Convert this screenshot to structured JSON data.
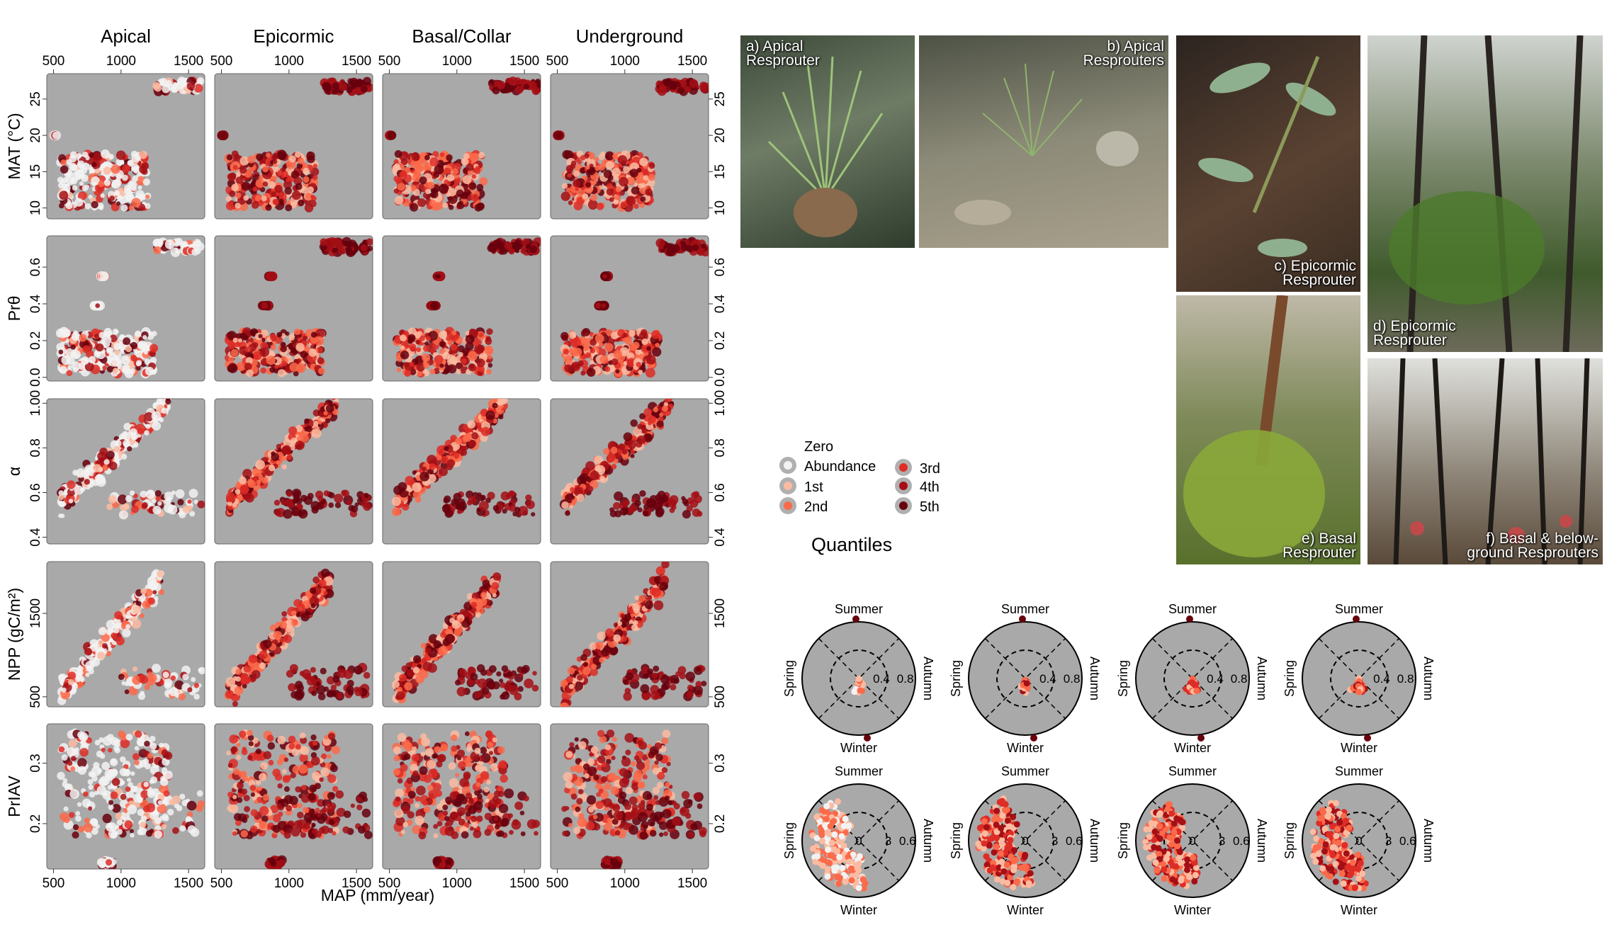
{
  "figure": {
    "col_titles": [
      "Apical",
      "Epicormic",
      "Basal/Collar",
      "Underground"
    ],
    "x_axis": {
      "label": "MAP (mm/year)",
      "ticks": [
        500,
        1000,
        1500
      ],
      "range": [
        450,
        1620
      ]
    },
    "rows": [
      {
        "ylabel": "MAT (°C)",
        "ticks": [
          10,
          15,
          20,
          25
        ],
        "range": [
          8.5,
          28.5
        ]
      },
      {
        "ylabel": "Prθ",
        "ticks": [
          "0.0",
          "0.2",
          "0.4",
          "0.6"
        ],
        "tick_values": [
          0,
          0.2,
          0.4,
          0.6
        ],
        "range": [
          -0.02,
          0.77
        ]
      },
      {
        "ylabel": "α",
        "ticks": [
          "0.4",
          "0.6",
          "0.8",
          "1.00"
        ],
        "tick_values": [
          0.4,
          0.6,
          0.8,
          1.0
        ],
        "range": [
          0.37,
          1.02
        ]
      },
      {
        "ylabel": "NPP (gC/m²)",
        "ticks": [
          500,
          1500
        ],
        "range": [
          380,
          2120
        ]
      },
      {
        "ylabel": "PrIAV",
        "ticks": [
          0.2,
          0.3
        ],
        "range": [
          0.125,
          0.365
        ]
      }
    ],
    "legend": {
      "title": "Quantiles",
      "items": [
        "Zero Abundance",
        "1st",
        "2nd",
        "3rd",
        "4th",
        "5th"
      ],
      "colors": [
        "#f2f2f2",
        "#fcbba1",
        "#fb6a4a",
        "#de2d26",
        "#a50f15",
        "#67000d"
      ]
    },
    "season_labels": {
      "top": "Summer",
      "bottom": "Winter",
      "left": "Spring",
      "right": "Autumn"
    },
    "polar_rings_top": [
      "0.4",
      "0.8"
    ],
    "polar_rings_bottom": [
      "0",
      "3",
      "0.6"
    ],
    "photos": [
      {
        "label": "a) Apical Resprouter"
      },
      {
        "label": "b) Apical Resprouters"
      },
      {
        "label": "c) Epicormic Resprouter"
      },
      {
        "label": "d) Epicormic Resprouter"
      },
      {
        "label": "e) Basal Resprouter"
      },
      {
        "label": "f) Basal & below-ground Resprouters"
      }
    ],
    "colors": {
      "panel_bg": "#a9a9a9",
      "zero": "#f2f2f2",
      "dark": "#67000d"
    }
  },
  "chart_data": [
    {
      "type": "scatter",
      "description_of_data": "Scatter grid of climate variables against MAP, 4 resprouting strategies (columns) by 5 variables (rows). Points coloured by abundance quantile (approximate point clouds).",
      "x_var": "MAP (mm/year)",
      "clusters": {
        "MAT": [
          {
            "x": [
              550,
              1200
            ],
            "y": [
              10,
              17.5
            ],
            "note": "main cloud"
          },
          {
            "x": [
              1250,
              1600
            ],
            "y": [
              26,
              27.5
            ],
            "note": "tropical band"
          },
          {
            "x": [
              500,
              520
            ],
            "y": [
              20,
              20
            ],
            "note": "outlier"
          }
        ],
        "Prθ": [
          {
            "x": [
              550,
              1250
            ],
            "y": [
              0.02,
              0.25
            ]
          },
          {
            "x": [
              1250,
              1600
            ],
            "y": [
              0.68,
              0.74
            ]
          },
          {
            "x": [
              800,
              850
            ],
            "y": [
              0.39,
              0.39
            ]
          },
          {
            "x": [
              850,
              880
            ],
            "y": [
              0.55,
              0.55
            ]
          }
        ],
        "α": [
          {
            "x": [
              550,
              1350
            ],
            "y": [
              0.55,
              1.0
            ]
          },
          {
            "x": [
              900,
              1600
            ],
            "y": [
              0.5,
              0.6
            ]
          }
        ],
        "NPP": [
          {
            "x": [
              550,
              1300
            ],
            "y": [
              550,
              1900
            ]
          },
          {
            "x": [
              1000,
              1600
            ],
            "y": [
              500,
              850
            ]
          }
        ],
        "PrIAV": [
          {
            "x": [
              550,
              1350
            ],
            "y": [
              0.18,
              0.35
            ]
          },
          {
            "x": [
              900,
              1600
            ],
            "y": [
              0.18,
              0.25
            ]
          },
          {
            "x": [
              850,
              950
            ],
            "y": [
              0.13,
              0.14
            ]
          }
        ]
      }
    },
    {
      "type": "scatter",
      "description_of_data": "Polar seasonality plots (8 panels): top row ring scale 0.4/0.8, bottom row 0/3/0.6; points coloured by quantile.",
      "top_ring_ticks": [
        0.4,
        0.8
      ],
      "bottom_ring_ticks": [
        0,
        3,
        0.6
      ]
    }
  ]
}
